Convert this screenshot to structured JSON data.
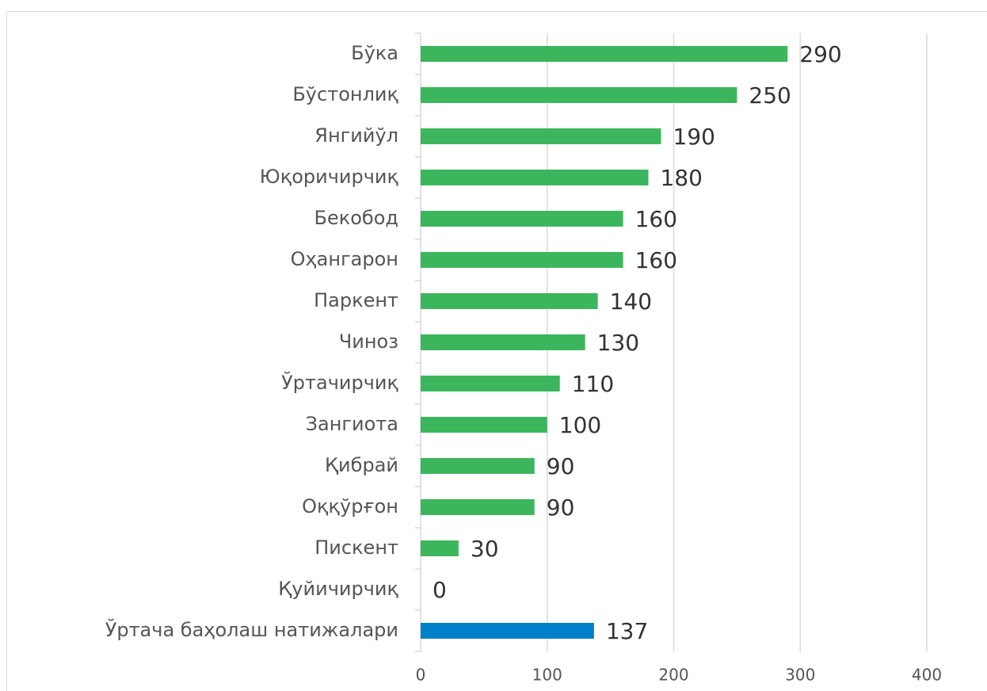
{
  "chart_data": {
    "type": "bar",
    "orientation": "horizontal",
    "categories": [
      "Бўка",
      "Бўстонлиқ",
      "Янгийўл",
      "Юқоричирчиқ",
      "Бекобод",
      "Оҳангарон",
      "Паркент",
      "Чиноз",
      "Ўртачирчиқ",
      "Зангиота",
      "Қибрай",
      "Оққўрғон",
      "Пискент",
      "Қуйичирчиқ",
      "Ўртача баҳолаш натижалари"
    ],
    "values": [
      290,
      250,
      190,
      180,
      160,
      160,
      140,
      130,
      110,
      100,
      90,
      90,
      30,
      0,
      137
    ],
    "colors": [
      "#3cb65c",
      "#3cb65c",
      "#3cb65c",
      "#3cb65c",
      "#3cb65c",
      "#3cb65c",
      "#3cb65c",
      "#3cb65c",
      "#3cb65c",
      "#3cb65c",
      "#3cb65c",
      "#3cb65c",
      "#3cb65c",
      "#3cb65c",
      "#0080c8"
    ],
    "xlim": [
      0,
      400
    ],
    "xticks": [
      0,
      100,
      200,
      300,
      400
    ],
    "grid": true
  }
}
